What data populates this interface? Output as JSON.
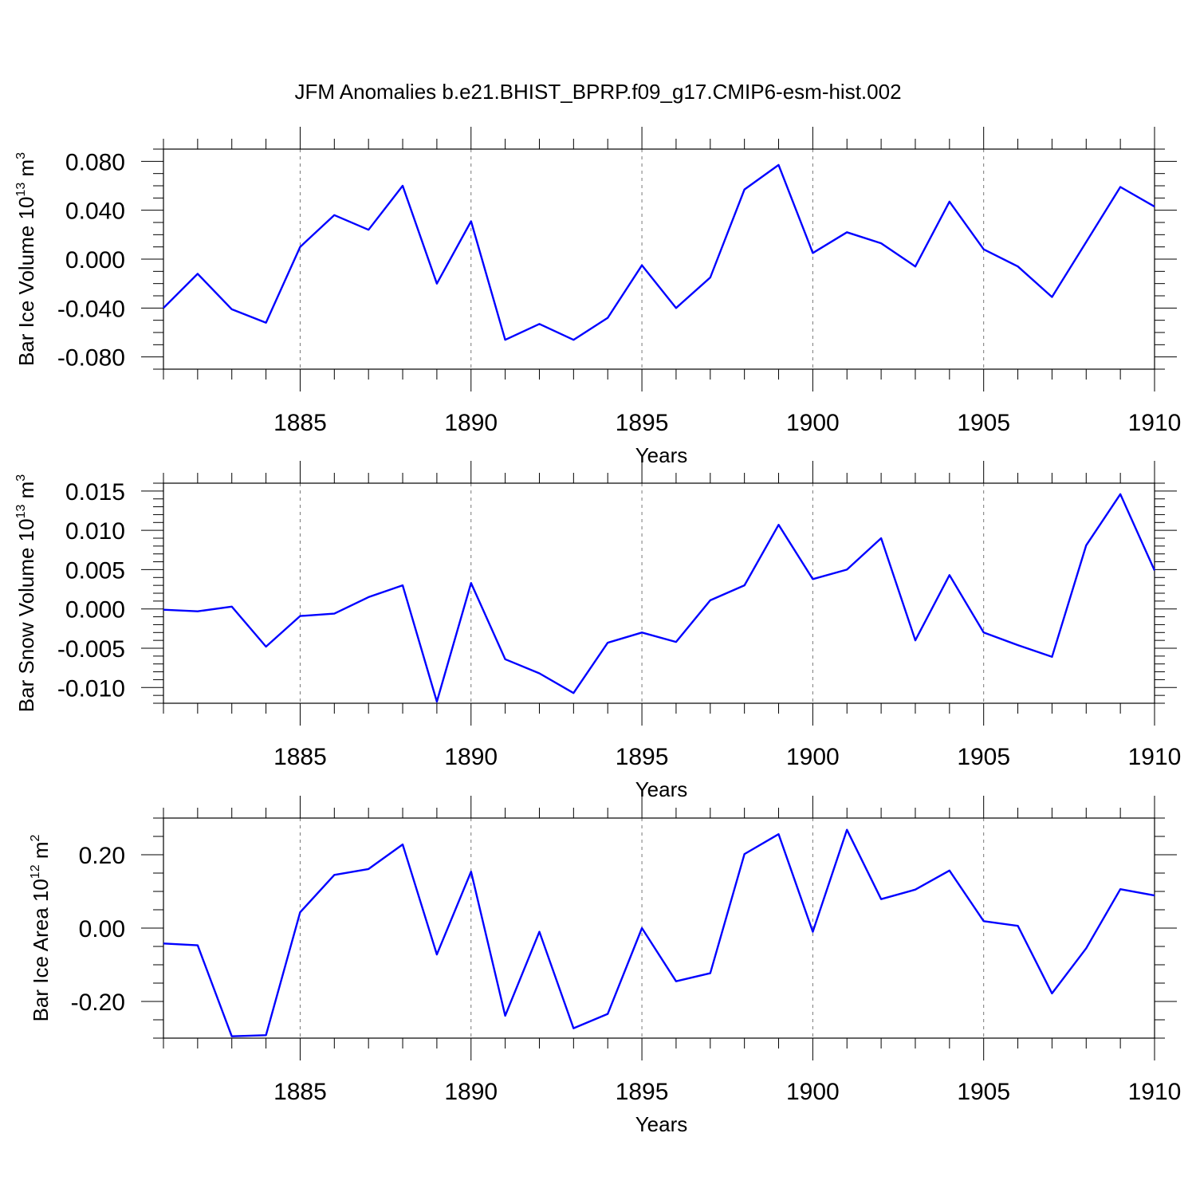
{
  "title": "JFM Anomalies b.e21.BHIST_BPRP.f09_g17.CMIP6-esm-hist.002",
  "colors": {
    "line": "#0000ff",
    "grid": "#777777",
    "axis": "#000000"
  },
  "chart_data": [
    {
      "type": "line",
      "ylabel": {
        "text": "Bar Ice Volume 10",
        "exp": "13",
        "unit": " m",
        "unit_exp": "3"
      },
      "xlabel": "Years",
      "xlim": [
        1881,
        1910
      ],
      "ylim": [
        -0.09,
        0.09
      ],
      "x_ticks": [
        1885,
        1890,
        1895,
        1900,
        1905,
        1910
      ],
      "x_tick_labels": [
        "1885",
        "1890",
        "1895",
        "1900",
        "1905",
        "1910"
      ],
      "y_ticks": [
        -0.08,
        -0.04,
        0.0,
        0.04,
        0.08
      ],
      "y_tick_labels": [
        "-0.080",
        "-0.040",
        "0.000",
        "0.040",
        "0.080"
      ],
      "y_minor_step": 0.01,
      "grid": "vertical dashed at major x ticks",
      "x": [
        1881,
        1882,
        1883,
        1884,
        1885,
        1886,
        1887,
        1888,
        1889,
        1890,
        1891,
        1892,
        1893,
        1894,
        1895,
        1896,
        1897,
        1898,
        1899,
        1900,
        1901,
        1902,
        1903,
        1904,
        1905,
        1906,
        1907,
        1908,
        1909,
        1910
      ],
      "values": [
        -0.04,
        -0.012,
        -0.041,
        -0.052,
        0.01,
        0.036,
        0.024,
        0.06,
        -0.02,
        0.031,
        -0.066,
        -0.053,
        -0.066,
        -0.048,
        -0.005,
        -0.04,
        -0.015,
        0.057,
        0.077,
        0.005,
        0.022,
        0.013,
        -0.006,
        0.047,
        0.008,
        -0.006,
        -0.031,
        0.014,
        0.059,
        0.043
      ]
    },
    {
      "type": "line",
      "ylabel": {
        "text": "Bar Snow Volume 10",
        "exp": "13",
        "unit": " m",
        "unit_exp": "3"
      },
      "xlabel": "Years",
      "xlim": [
        1881,
        1910
      ],
      "ylim": [
        -0.012,
        0.016
      ],
      "x_ticks": [
        1885,
        1890,
        1895,
        1900,
        1905,
        1910
      ],
      "x_tick_labels": [
        "1885",
        "1890",
        "1895",
        "1900",
        "1905",
        "1910"
      ],
      "y_ticks": [
        -0.01,
        -0.005,
        0.0,
        0.005,
        0.01,
        0.015
      ],
      "y_tick_labels": [
        "-0.010",
        "-0.005",
        "0.000",
        "0.005",
        "0.010",
        "0.015"
      ],
      "y_minor_step": 0.001,
      "grid": "vertical dashed at major x ticks",
      "x": [
        1881,
        1882,
        1883,
        1884,
        1885,
        1886,
        1887,
        1888,
        1889,
        1890,
        1891,
        1892,
        1893,
        1894,
        1895,
        1896,
        1897,
        1898,
        1899,
        1900,
        1901,
        1902,
        1903,
        1904,
        1905,
        1906,
        1907,
        1908,
        1909,
        1910
      ],
      "values": [
        -0.0001,
        -0.0003,
        0.0003,
        -0.0048,
        -0.0009,
        -0.0006,
        0.0015,
        0.003,
        -0.0118,
        0.0033,
        -0.0064,
        -0.0082,
        -0.0107,
        -0.0043,
        -0.003,
        -0.0042,
        0.0011,
        0.003,
        0.0107,
        0.0038,
        0.005,
        0.009,
        -0.004,
        0.0043,
        -0.003,
        -0.0046,
        -0.0061,
        0.0081,
        0.0146,
        0.0049
      ]
    },
    {
      "type": "line",
      "ylabel": {
        "text": "Bar Ice Area 10",
        "exp": "12",
        "unit": " m",
        "unit_exp": "2"
      },
      "xlabel": "Years",
      "xlim": [
        1881,
        1910
      ],
      "ylim": [
        -0.3,
        0.3
      ],
      "x_ticks": [
        1885,
        1890,
        1895,
        1900,
        1905,
        1910
      ],
      "x_tick_labels": [
        "1885",
        "1890",
        "1895",
        "1900",
        "1905",
        "1910"
      ],
      "y_ticks": [
        -0.2,
        0.0,
        0.2
      ],
      "y_tick_labels": [
        "-0.20",
        "0.00",
        "0.20"
      ],
      "y_minor_step": 0.05,
      "grid": "vertical dashed at major x ticks",
      "x": [
        1881,
        1882,
        1883,
        1884,
        1885,
        1886,
        1887,
        1888,
        1889,
        1890,
        1891,
        1892,
        1893,
        1894,
        1895,
        1896,
        1897,
        1898,
        1899,
        1900,
        1901,
        1902,
        1903,
        1904,
        1905,
        1906,
        1907,
        1908,
        1909,
        1910
      ],
      "values": [
        -0.042,
        -0.047,
        -0.295,
        -0.292,
        0.043,
        0.145,
        0.161,
        0.228,
        -0.072,
        0.154,
        -0.239,
        -0.01,
        -0.273,
        -0.234,
        0.0,
        -0.145,
        -0.123,
        0.202,
        0.256,
        -0.01,
        0.268,
        0.079,
        0.105,
        0.157,
        0.019,
        0.006,
        -0.178,
        -0.055,
        0.106,
        0.089
      ]
    }
  ]
}
